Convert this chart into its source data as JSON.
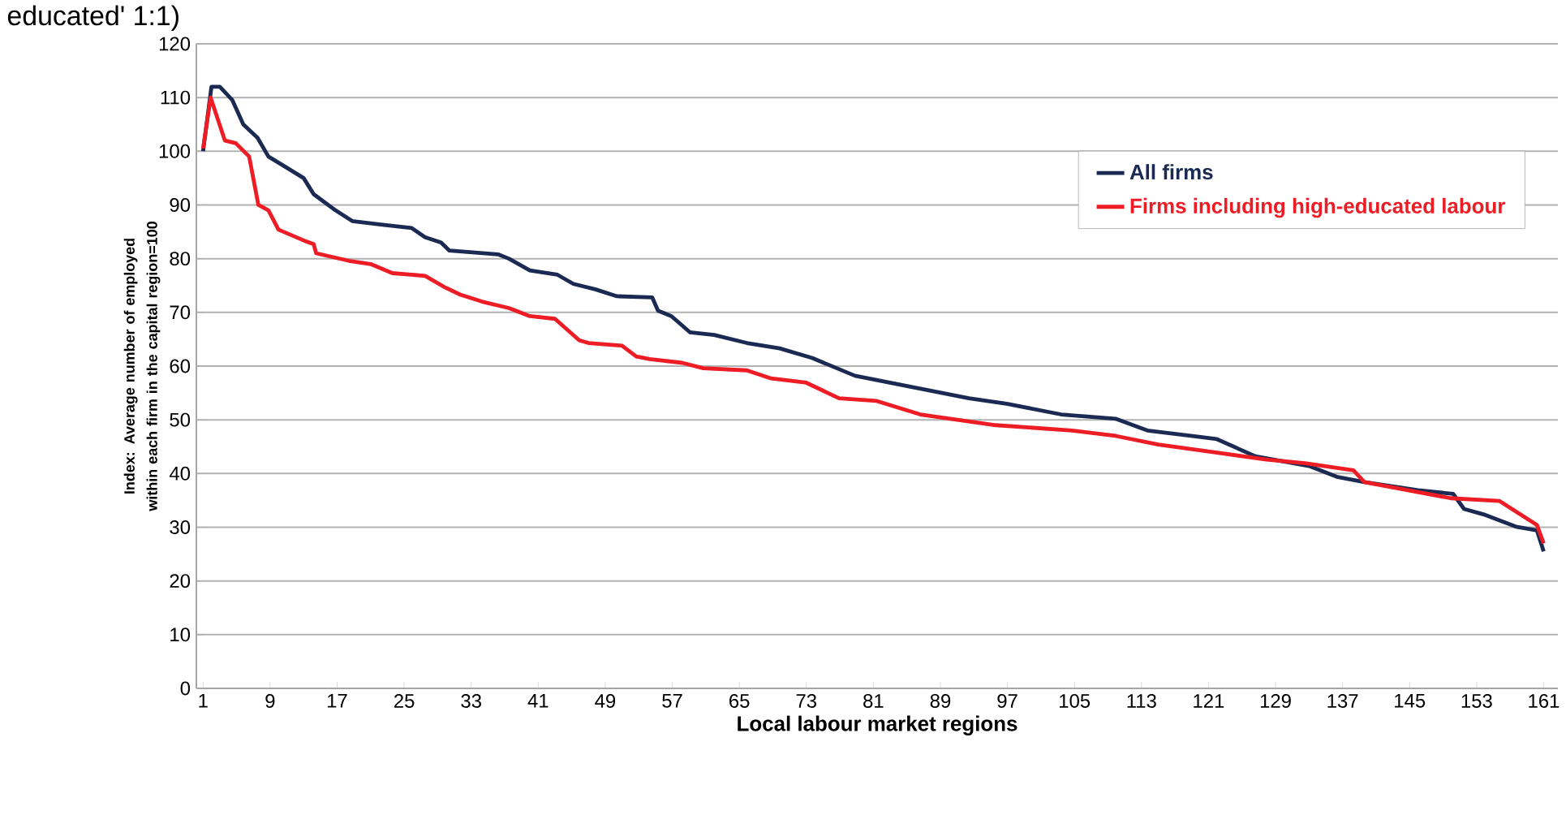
{
  "chart_data": {
    "type": "line",
    "title": "educated' 1:1)",
    "xlabel": "Local labour market regions",
    "ylabel": "Index: Average number of employed within each firm in the capital region=100",
    "xlim": [
      0.2,
      162.7
    ],
    "xticks": [
      1,
      9,
      17,
      25,
      33,
      41,
      49,
      57,
      65,
      73,
      81,
      89,
      97,
      105,
      113,
      121,
      129,
      137,
      145,
      153,
      161
    ],
    "ylim": [
      0,
      120
    ],
    "yticks": [
      0,
      10,
      20,
      30,
      40,
      50,
      60,
      70,
      80,
      90,
      100,
      110,
      120
    ],
    "grid": "y",
    "legend": "top right",
    "marker": "none",
    "line_style": "solid",
    "series": [
      {
        "name": "All firms",
        "color": "#1b2a52",
        "x": [
          1,
          2,
          3,
          4.5,
          5.8,
          7.5,
          8.8,
          10.4,
          13,
          14.2,
          16.8,
          18.8,
          22,
          25.9,
          27.5,
          29.4,
          30.4,
          36.2,
          37.5,
          40,
          43.3,
          45.2,
          47.8,
          50.4,
          54.6,
          55.3,
          56.9,
          59.1,
          62,
          65.9,
          69.8,
          73.7,
          78.8,
          85.9,
          92.4,
          96.9,
          103.4,
          109.9,
          113.7,
          118.9,
          122,
          126.6,
          133,
          136.3,
          139.6,
          146,
          150.2,
          151.5,
          153.8,
          157.7,
          160.2,
          161
        ],
        "values": [
          100,
          112,
          112,
          109.5,
          105,
          102.5,
          99,
          97.5,
          95,
          92,
          89,
          87,
          86.4,
          85.7,
          84,
          83,
          81.5,
          80.8,
          80,
          77.8,
          77,
          75.3,
          74.3,
          73,
          72.8,
          70.3,
          69.3,
          66.3,
          65.8,
          64.3,
          63.3,
          61.5,
          58.2,
          56,
          54,
          53,
          51,
          50.2,
          48,
          47,
          46.4,
          43.2,
          41.4,
          39.4,
          38.4,
          36.9,
          36.2,
          33.4,
          32.4,
          30.1,
          29.4,
          25.5
        ]
      },
      {
        "name": "Firms including high-educated labour",
        "color": "#ee1c25",
        "x": [
          1,
          1.9,
          3.6,
          4.9,
          6.5,
          7.6,
          8.8,
          10,
          13,
          14.2,
          14.5,
          18.4,
          21,
          23.6,
          27.5,
          29.7,
          31.7,
          34.3,
          37.5,
          40,
          43,
          45.9,
          47,
          51,
          52.7,
          54.3,
          58.2,
          60.7,
          65.9,
          68.8,
          73,
          76.9,
          81.4,
          86.6,
          95.6,
          104.7,
          109.9,
          115,
          121.5,
          127.9,
          132.5,
          138.3,
          139.6,
          149.9,
          155.7,
          160.2,
          161
        ],
        "values": [
          100.5,
          110,
          102,
          101.5,
          99,
          90,
          89,
          85.4,
          83.4,
          82.7,
          81,
          79.6,
          79,
          77.3,
          76.8,
          74.8,
          73.3,
          72,
          70.8,
          69.3,
          68.8,
          64.8,
          64.3,
          63.8,
          61.8,
          61.3,
          60.6,
          59.6,
          59.2,
          57.7,
          56.9,
          54,
          53.5,
          51,
          49,
          48,
          47,
          45.4,
          44,
          42.6,
          41.9,
          40.6,
          38.4,
          35.4,
          34.9,
          30.4,
          27
        ]
      }
    ]
  }
}
